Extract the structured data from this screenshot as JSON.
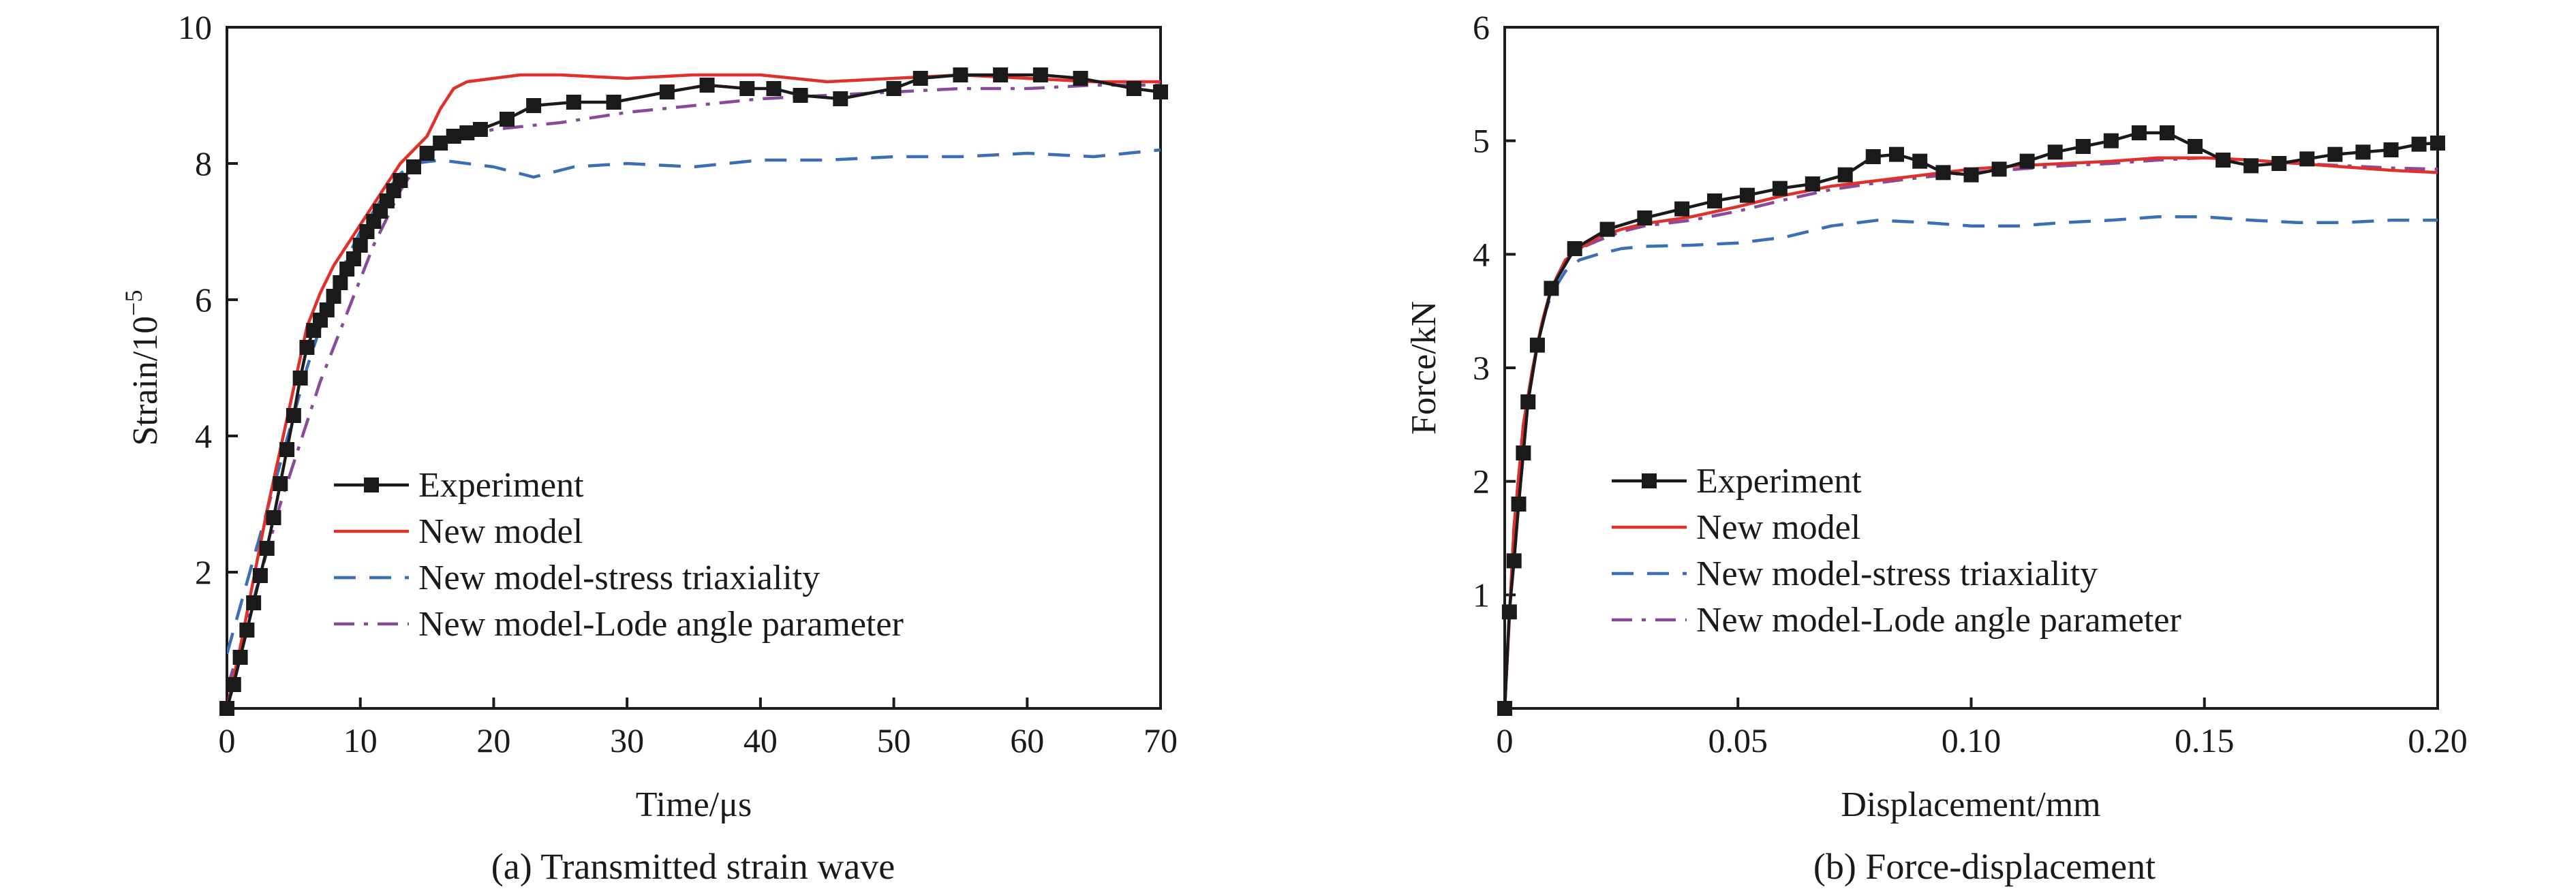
{
  "chart_data": [
    {
      "type": "line",
      "caption": "(a) Transmitted strain wave",
      "xlabel": "Time/μs",
      "ylabel": "Strain/10",
      "ylabel_exponent": "−5",
      "xlim": [
        0,
        70
      ],
      "ylim": [
        0,
        10
      ],
      "xticks": [
        0,
        10,
        20,
        30,
        40,
        50,
        60,
        70
      ],
      "yticks": [
        2,
        4,
        6,
        8,
        10
      ],
      "xtick_labels": [
        "0",
        "10",
        "20",
        "30",
        "40",
        "50",
        "60",
        "70"
      ],
      "ytick_labels": [
        "2",
        "4",
        "6",
        "8",
        "10"
      ],
      "grid": false,
      "legend_position": "lower-left",
      "series": [
        {
          "name": "Experiment",
          "color": "#1a1a1a",
          "style": "solid",
          "marker": "square",
          "x": [
            0,
            0.5,
            1,
            1.5,
            2,
            2.5,
            3,
            3.5,
            4,
            4.5,
            5,
            5.5,
            6,
            6.5,
            7,
            7.5,
            8,
            8.5,
            9,
            9.5,
            10,
            10.5,
            11,
            11.5,
            12,
            12.5,
            13,
            14,
            15,
            16,
            17,
            18,
            19,
            21,
            23,
            26,
            29,
            33,
            36,
            39,
            41,
            43,
            46,
            50,
            52,
            55,
            58,
            61,
            64,
            68,
            70
          ],
          "y": [
            0,
            0.35,
            0.75,
            1.15,
            1.55,
            1.95,
            2.35,
            2.8,
            3.3,
            3.8,
            4.3,
            4.85,
            5.3,
            5.55,
            5.7,
            5.85,
            6.05,
            6.25,
            6.45,
            6.6,
            6.8,
            7.0,
            7.15,
            7.3,
            7.45,
            7.6,
            7.75,
            7.95,
            8.15,
            8.3,
            8.4,
            8.45,
            8.5,
            8.65,
            8.85,
            8.9,
            8.9,
            9.05,
            9.15,
            9.1,
            9.1,
            9.0,
            8.95,
            9.1,
            9.25,
            9.3,
            9.3,
            9.3,
            9.25,
            9.1,
            9.05
          ]
        },
        {
          "name": "New model",
          "color": "#e0302a",
          "style": "solid",
          "x": [
            0,
            1,
            2,
            3,
            4,
            5,
            6,
            7,
            8,
            9,
            10,
            11,
            12,
            13,
            14,
            15,
            16,
            17,
            18,
            20,
            22,
            25,
            30,
            35,
            40,
            45,
            50,
            55,
            60,
            65,
            70
          ],
          "y": [
            0,
            0.9,
            1.9,
            2.9,
            3.8,
            4.7,
            5.6,
            6.1,
            6.5,
            6.8,
            7.1,
            7.4,
            7.7,
            8.0,
            8.2,
            8.4,
            8.8,
            9.1,
            9.2,
            9.25,
            9.3,
            9.3,
            9.25,
            9.3,
            9.3,
            9.2,
            9.25,
            9.3,
            9.25,
            9.2,
            9.2
          ]
        },
        {
          "name": "New model-stress triaxiality",
          "color": "#3b6eb5",
          "style": "dashed",
          "x": [
            0,
            1,
            2,
            3,
            4,
            5,
            6,
            7,
            8,
            9,
            10,
            11,
            12,
            13,
            14,
            16,
            18,
            20,
            23,
            26,
            30,
            35,
            40,
            45,
            50,
            55,
            60,
            65,
            70
          ],
          "y": [
            0.8,
            1.5,
            2.2,
            2.9,
            3.6,
            4.3,
            5.0,
            5.6,
            6.1,
            6.6,
            7.0,
            7.3,
            7.6,
            7.85,
            8.0,
            8.05,
            8.0,
            7.95,
            7.8,
            7.95,
            8.0,
            7.95,
            8.05,
            8.05,
            8.1,
            8.1,
            8.15,
            8.1,
            8.2
          ]
        },
        {
          "name": "New model-Lode angle parameter",
          "color": "#8a4a9c",
          "style": "dashdot",
          "x": [
            0,
            1,
            2,
            3,
            4,
            5,
            6,
            7,
            8,
            9,
            10,
            11,
            12,
            13,
            14,
            15,
            17,
            20,
            25,
            30,
            35,
            40,
            45,
            50,
            55,
            60,
            65,
            70
          ],
          "y": [
            0.3,
            0.9,
            1.6,
            2.3,
            3.0,
            3.6,
            4.2,
            4.8,
            5.3,
            5.8,
            6.3,
            6.8,
            7.2,
            7.6,
            7.9,
            8.15,
            8.35,
            8.5,
            8.6,
            8.75,
            8.85,
            8.95,
            9.0,
            9.05,
            9.1,
            9.1,
            9.15,
            9.15
          ]
        }
      ]
    },
    {
      "type": "line",
      "caption": "(b) Force-displacement",
      "xlabel": "Displacement/mm",
      "ylabel": "Force/kN",
      "xlim": [
        0,
        0.2
      ],
      "ylim": [
        0,
        6
      ],
      "xticks": [
        0,
        0.05,
        0.1,
        0.15,
        0.2
      ],
      "yticks": [
        1,
        2,
        3,
        4,
        5,
        6
      ],
      "xtick_labels": [
        "0",
        "0.05",
        "0.10",
        "0.15",
        "0.20"
      ],
      "ytick_labels": [
        "1",
        "2",
        "3",
        "4",
        "5",
        "6"
      ],
      "grid": false,
      "legend_position": "lower-left",
      "series": [
        {
          "name": "Experiment",
          "color": "#1a1a1a",
          "style": "solid",
          "marker": "square",
          "x": [
            0,
            0.001,
            0.002,
            0.003,
            0.004,
            0.005,
            0.007,
            0.01,
            0.015,
            0.022,
            0.03,
            0.038,
            0.045,
            0.052,
            0.059,
            0.066,
            0.073,
            0.079,
            0.084,
            0.089,
            0.094,
            0.1,
            0.106,
            0.112,
            0.118,
            0.124,
            0.13,
            0.136,
            0.142,
            0.148,
            0.154,
            0.16,
            0.166,
            0.172,
            0.178,
            0.184,
            0.19,
            0.196,
            0.2
          ],
          "y": [
            0,
            0.85,
            1.3,
            1.8,
            2.25,
            2.7,
            3.2,
            3.7,
            4.05,
            4.22,
            4.32,
            4.4,
            4.47,
            4.52,
            4.58,
            4.62,
            4.7,
            4.86,
            4.88,
            4.82,
            4.72,
            4.7,
            4.75,
            4.82,
            4.9,
            4.95,
            5.0,
            5.07,
            5.07,
            4.95,
            4.83,
            4.78,
            4.8,
            4.84,
            4.88,
            4.9,
            4.92,
            4.97,
            4.98
          ]
        },
        {
          "name": "New model",
          "color": "#e0302a",
          "style": "solid",
          "x": [
            0,
            0.002,
            0.004,
            0.006,
            0.008,
            0.01,
            0.013,
            0.016,
            0.02,
            0.025,
            0.03,
            0.04,
            0.05,
            0.06,
            0.07,
            0.08,
            0.09,
            0.1,
            0.11,
            0.12,
            0.13,
            0.14,
            0.15,
            0.16,
            0.17,
            0.18,
            0.19,
            0.2
          ],
          "y": [
            0,
            1.6,
            2.5,
            3.0,
            3.4,
            3.7,
            3.95,
            4.05,
            4.15,
            4.22,
            4.27,
            4.33,
            4.42,
            4.52,
            4.6,
            4.65,
            4.7,
            4.75,
            4.78,
            4.8,
            4.82,
            4.85,
            4.85,
            4.83,
            4.8,
            4.77,
            4.74,
            4.72
          ]
        },
        {
          "name": "New model-stress triaxiality",
          "color": "#3b6eb5",
          "style": "dashed",
          "x": [
            0,
            0.002,
            0.004,
            0.006,
            0.008,
            0.01,
            0.013,
            0.016,
            0.02,
            0.025,
            0.03,
            0.04,
            0.05,
            0.06,
            0.07,
            0.08,
            0.09,
            0.1,
            0.11,
            0.12,
            0.13,
            0.14,
            0.15,
            0.16,
            0.17,
            0.18,
            0.19,
            0.2
          ],
          "y": [
            0,
            1.6,
            2.5,
            3.0,
            3.4,
            3.65,
            3.85,
            3.95,
            4.0,
            4.05,
            4.07,
            4.08,
            4.1,
            4.15,
            4.25,
            4.3,
            4.28,
            4.25,
            4.25,
            4.28,
            4.3,
            4.33,
            4.33,
            4.3,
            4.28,
            4.28,
            4.3,
            4.3
          ]
        },
        {
          "name": "New model-Lode angle parameter",
          "color": "#8a4a9c",
          "style": "dashdot",
          "x": [
            0,
            0.002,
            0.004,
            0.006,
            0.008,
            0.01,
            0.013,
            0.016,
            0.02,
            0.025,
            0.03,
            0.04,
            0.05,
            0.06,
            0.07,
            0.08,
            0.09,
            0.1,
            0.11,
            0.12,
            0.13,
            0.14,
            0.15,
            0.16,
            0.17,
            0.18,
            0.19,
            0.2
          ],
          "y": [
            0,
            1.6,
            2.5,
            3.0,
            3.4,
            3.7,
            3.95,
            4.05,
            4.12,
            4.2,
            4.25,
            4.3,
            4.38,
            4.48,
            4.57,
            4.63,
            4.68,
            4.72,
            4.75,
            4.78,
            4.8,
            4.83,
            4.85,
            4.83,
            4.8,
            4.78,
            4.76,
            4.75
          ]
        }
      ]
    }
  ]
}
